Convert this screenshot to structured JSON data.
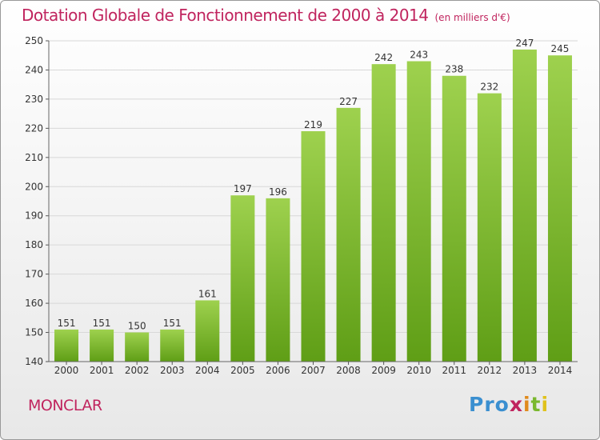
{
  "header": {
    "title": "Dotation Globale de Fonctionnement de 2000 à 2014",
    "subtitle": "(en milliers d'€)"
  },
  "footer": {
    "commune": "MONCLAR",
    "logo": [
      "Pro",
      "x",
      "i",
      "t",
      "i"
    ]
  },
  "colors": {
    "title": "#c0245e",
    "bar_top": "#9ed14e",
    "bar_bottom": "#5f9e16",
    "grid": "#d8d8d8"
  },
  "chart_data": {
    "type": "bar",
    "title": "Dotation Globale de Fonctionnement de 2000 à 2014",
    "subtitle": "(en milliers d'€)",
    "xlabel": "",
    "ylabel": "",
    "ylim": [
      140,
      250
    ],
    "yticks": [
      140,
      150,
      160,
      170,
      180,
      190,
      200,
      210,
      220,
      230,
      240,
      250
    ],
    "grid": true,
    "categories": [
      "2000",
      "2001",
      "2002",
      "2003",
      "2004",
      "2005",
      "2006",
      "2007",
      "2008",
      "2009",
      "2010",
      "2011",
      "2012",
      "2013",
      "2014"
    ],
    "values": [
      151,
      151,
      150,
      151,
      161,
      197,
      196,
      219,
      227,
      242,
      243,
      238,
      232,
      247,
      245
    ]
  }
}
